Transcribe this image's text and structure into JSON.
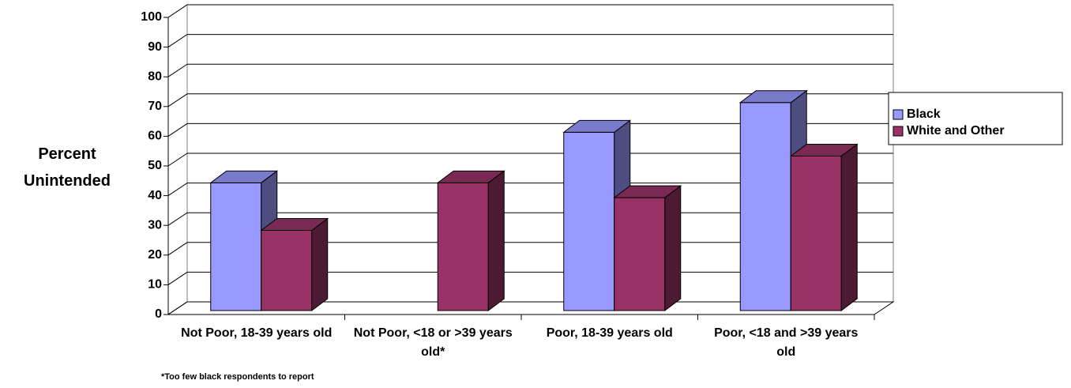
{
  "chart_data": {
    "type": "bar3d",
    "y_label": "Percent Unintended",
    "footnote": "*Too few black respondents to report",
    "categories": [
      "Not Poor, 18-39 years old",
      "Not Poor, <18 or >39 years old*",
      "Poor, 18-39 years old",
      "Poor, <18 and >39 years old"
    ],
    "series": [
      {
        "name": "Black",
        "color": "#9999ff",
        "values": [
          43,
          null,
          60,
          70
        ]
      },
      {
        "name": "White and Other",
        "color": "#993366",
        "values": [
          27,
          43,
          38,
          52
        ]
      }
    ],
    "ylim": [
      0,
      100
    ],
    "yticks": [
      0,
      10,
      20,
      30,
      40,
      50,
      60,
      70,
      80,
      90,
      100
    ],
    "grid": true,
    "legend": "right"
  }
}
